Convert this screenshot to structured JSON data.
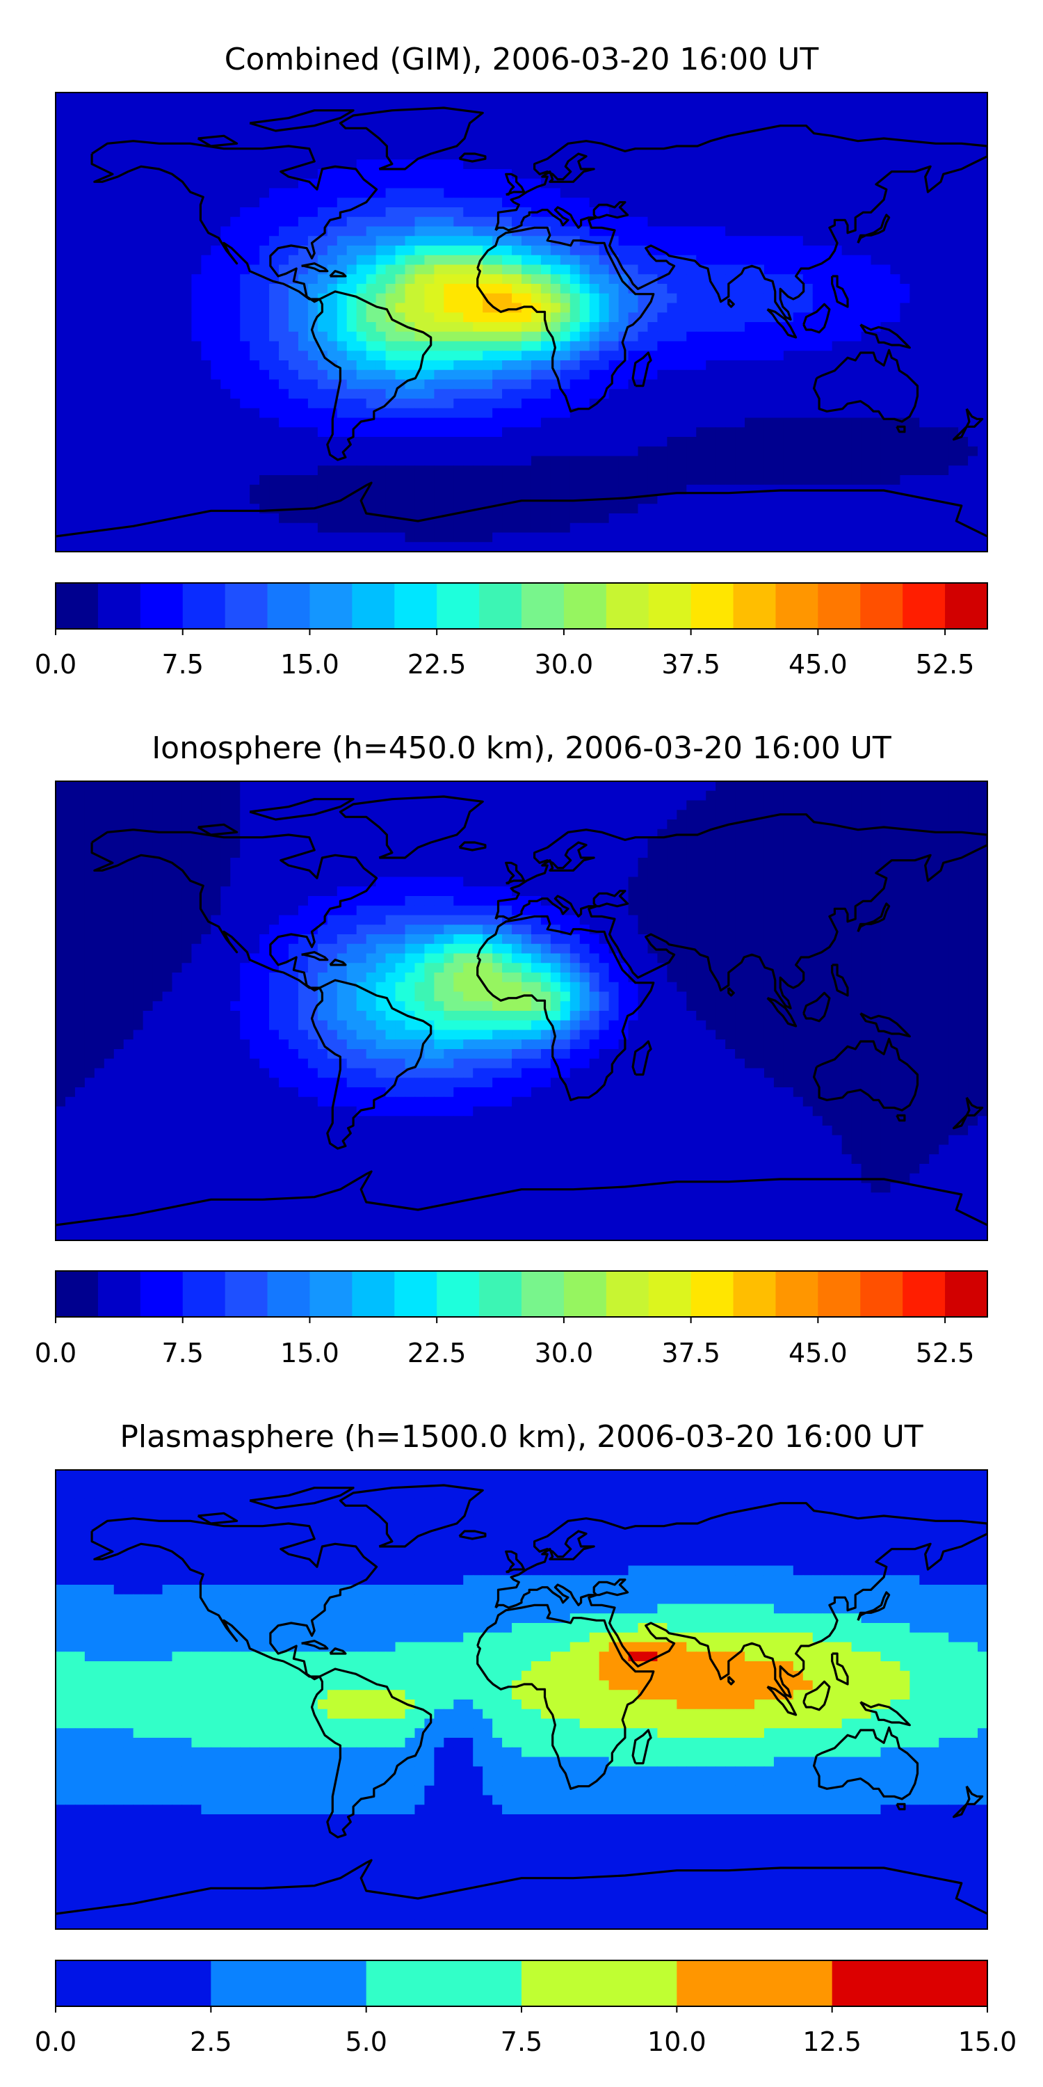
{
  "chart_data": [
    {
      "type": "heatmap",
      "title": "Combined (GIM), 2006-03-20 16:00 UT",
      "colorbar": {
        "min": 0.0,
        "max": 55.0,
        "levels": [
          0.0,
          2.5,
          5.0,
          7.5,
          10.0,
          12.5,
          15.0,
          17.5,
          20.0,
          22.5,
          25.0,
          27.5,
          30.0,
          32.5,
          35.0,
          37.5,
          40.0,
          42.5,
          45.0,
          47.5,
          50.0,
          52.5,
          55.0
        ],
        "colors": [
          "#00008f",
          "#0000c8",
          "#0000ff",
          "#0a2cff",
          "#1e50ff",
          "#1478ff",
          "#1496ff",
          "#00bfff",
          "#00e6ff",
          "#1effdc",
          "#3cf5b4",
          "#78f58c",
          "#96f560",
          "#c8f532",
          "#dcf51e",
          "#ffe600",
          "#ffbe00",
          "#ff9600",
          "#ff7800",
          "#ff5000",
          "#ff1e00",
          "#d20000",
          "#960000"
        ],
        "tick_values": [
          0.0,
          7.5,
          15.0,
          22.5,
          30.0,
          37.5,
          45.0,
          52.5
        ],
        "tick_labels": [
          "0.0",
          "7.5",
          "15.0",
          "22.5",
          "30.0",
          "37.5",
          "45.0",
          "52.5"
        ]
      },
      "field": {
        "background": 3.5,
        "blobs": [
          {
            "lon": -42,
            "lat": 5,
            "slon": 38,
            "slat": 26,
            "amp": 19
          },
          {
            "lon": -5,
            "lat": 8,
            "slon": 24,
            "slat": 14,
            "amp": 20
          },
          {
            "lon": -30,
            "lat": 22,
            "slon": 14,
            "slat": 8,
            "amp": 6
          },
          {
            "lon": 10,
            "lat": 2,
            "slon": 16,
            "slat": 10,
            "amp": 7
          },
          {
            "lon": -50,
            "lat": 0,
            "slon": 18,
            "slat": 14,
            "amp": 6
          },
          {
            "lon": 60,
            "lat": 10,
            "slon": 35,
            "slat": 16,
            "amp": 5
          },
          {
            "lon": 115,
            "lat": 10,
            "slon": 30,
            "slat": 14,
            "amp": 2.5
          },
          {
            "lon": -30,
            "lat": -65,
            "slon": 60,
            "slat": 15,
            "amp": -2.5
          },
          {
            "lon": 120,
            "lat": -50,
            "slon": 40,
            "slat": 10,
            "amp": -2.5
          }
        ]
      }
    },
    {
      "type": "heatmap",
      "title": "Ionosphere  (h=450.0 km), 2006-03-20 16:00 UT",
      "colorbar": {
        "min": 0.0,
        "max": 55.0,
        "levels": [
          0.0,
          2.5,
          5.0,
          7.5,
          10.0,
          12.5,
          15.0,
          17.5,
          20.0,
          22.5,
          25.0,
          27.5,
          30.0,
          32.5,
          35.0,
          37.5,
          40.0,
          42.5,
          45.0,
          47.5,
          50.0,
          52.5,
          55.0
        ],
        "colors": [
          "#00008f",
          "#0000c8",
          "#0000ff",
          "#0a2cff",
          "#1e50ff",
          "#1478ff",
          "#1496ff",
          "#00bfff",
          "#00e6ff",
          "#1effdc",
          "#3cf5b4",
          "#78f58c",
          "#96f560",
          "#c8f532",
          "#dcf51e",
          "#ffe600",
          "#ffbe00",
          "#ff9600",
          "#ff7800",
          "#ff5000",
          "#ff1e00",
          "#d20000",
          "#960000"
        ],
        "tick_values": [
          0.0,
          7.5,
          15.0,
          22.5,
          30.0,
          37.5,
          45.0,
          52.5
        ],
        "tick_labels": [
          "0.0",
          "7.5",
          "15.0",
          "22.5",
          "30.0",
          "37.5",
          "45.0",
          "52.5"
        ]
      },
      "field": {
        "background": 2.5,
        "blobs": [
          {
            "lon": -42,
            "lat": 5,
            "slon": 36,
            "slat": 24,
            "amp": 17
          },
          {
            "lon": -5,
            "lat": 8,
            "slon": 24,
            "slat": 14,
            "amp": 16
          },
          {
            "lon": -20,
            "lat": 22,
            "slon": 12,
            "slat": 8,
            "amp": 6
          },
          {
            "lon": 10,
            "lat": 2,
            "slon": 12,
            "slat": 8,
            "amp": 7
          },
          {
            "lon": 90,
            "lat": 25,
            "slon": 45,
            "slat": 15,
            "amp": -1.5
          },
          {
            "lon": -150,
            "lat": 30,
            "slon": 40,
            "slat": 20,
            "amp": -1.0
          }
        ]
      }
    },
    {
      "type": "heatmap",
      "title": "Plasmasphere (h=1500.0 km), 2006-03-20 16:00 UT",
      "colorbar": {
        "min": 0.0,
        "max": 15.0,
        "levels": [
          0.0,
          2.5,
          5.0,
          7.5,
          10.0,
          12.5,
          15.0
        ],
        "colors": [
          "#0014e6",
          "#0a82ff",
          "#32ffc8",
          "#c0ff32",
          "#ff9600",
          "#dc0000"
        ],
        "tick_values": [
          0.0,
          2.5,
          5.0,
          7.5,
          10.0,
          12.5,
          15.0
        ],
        "tick_labels": [
          "0.0",
          "2.5",
          "5.0",
          "7.5",
          "10.0",
          "12.5",
          "15.0"
        ]
      },
      "field": {
        "background": 1.5,
        "blobs": [
          {
            "lon": 0,
            "lat": 0,
            "slon": 240,
            "slat": 26,
            "amp": 4.5
          },
          {
            "lon": 80,
            "lat": 10,
            "slon": 55,
            "slat": 18,
            "amp": 5.5
          },
          {
            "lon": 45,
            "lat": 18,
            "slon": 12,
            "slat": 6,
            "amp": 3.5
          },
          {
            "lon": -60,
            "lat": -2,
            "slon": 20,
            "slat": 7,
            "amp": 2.5
          },
          {
            "lon": -25,
            "lat": -15,
            "slon": 10,
            "slat": 15,
            "amp": -3.5
          },
          {
            "lon": -120,
            "lat": 0,
            "slon": 15,
            "slat": 10,
            "amp": 1.5
          }
        ]
      }
    }
  ]
}
